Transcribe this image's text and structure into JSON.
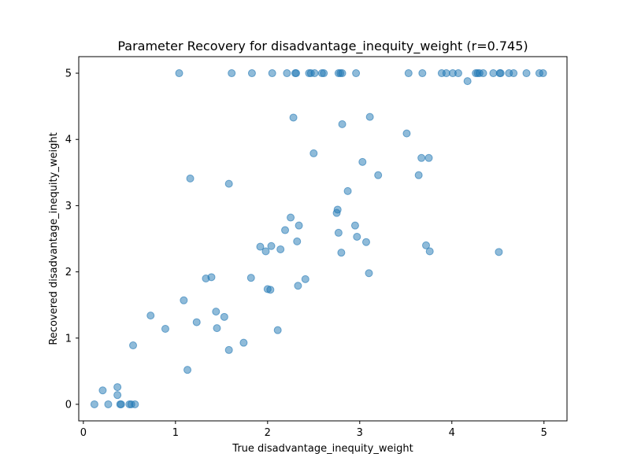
{
  "chart_data": {
    "type": "scatter",
    "title": "Parameter Recovery for disadvantage_inequity_weight (r=0.745)",
    "xlabel": "True disadvantage_inequity_weight",
    "ylabel": "Recovered disadvantage_inequity_weight",
    "xlim": [
      -0.05,
      5.25
    ],
    "ylim": [
      -0.25,
      5.25
    ],
    "xticks": [
      0,
      1,
      2,
      3,
      4,
      5
    ],
    "yticks": [
      0,
      1,
      2,
      3,
      4,
      5
    ],
    "grid": false,
    "marker_color": "#1f77b4",
    "points": [
      [
        0.12,
        0.0
      ],
      [
        0.27,
        0.0
      ],
      [
        0.4,
        0.0
      ],
      [
        0.41,
        0.0
      ],
      [
        0.5,
        0.0
      ],
      [
        0.52,
        0.0
      ],
      [
        0.56,
        0.0
      ],
      [
        0.21,
        0.21
      ],
      [
        0.37,
        0.14
      ],
      [
        0.37,
        0.26
      ],
      [
        0.54,
        0.89
      ],
      [
        0.73,
        1.34
      ],
      [
        0.89,
        1.14
      ],
      [
        1.04,
        5.0
      ],
      [
        1.09,
        1.57
      ],
      [
        1.13,
        0.52
      ],
      [
        1.16,
        3.41
      ],
      [
        1.23,
        1.24
      ],
      [
        1.33,
        1.9
      ],
      [
        1.39,
        1.92
      ],
      [
        1.44,
        1.4
      ],
      [
        1.45,
        1.15
      ],
      [
        1.53,
        1.32
      ],
      [
        1.58,
        0.82
      ],
      [
        1.58,
        3.33
      ],
      [
        1.61,
        5.0
      ],
      [
        1.74,
        0.93
      ],
      [
        1.82,
        1.91
      ],
      [
        1.83,
        5.0
      ],
      [
        1.92,
        2.38
      ],
      [
        1.98,
        2.31
      ],
      [
        2.0,
        1.74
      ],
      [
        2.03,
        1.73
      ],
      [
        2.04,
        2.39
      ],
      [
        2.05,
        5.0
      ],
      [
        2.11,
        1.12
      ],
      [
        2.14,
        2.34
      ],
      [
        2.19,
        2.63
      ],
      [
        2.21,
        5.0
      ],
      [
        2.25,
        2.82
      ],
      [
        2.28,
        4.33
      ],
      [
        2.3,
        5.0
      ],
      [
        2.31,
        5.0
      ],
      [
        2.32,
        2.46
      ],
      [
        2.33,
        1.79
      ],
      [
        2.34,
        2.7
      ],
      [
        2.41,
        1.89
      ],
      [
        2.45,
        5.0
      ],
      [
        2.47,
        5.0
      ],
      [
        2.5,
        3.79
      ],
      [
        2.51,
        5.0
      ],
      [
        2.59,
        5.0
      ],
      [
        2.61,
        5.0
      ],
      [
        2.75,
        2.89
      ],
      [
        2.76,
        2.94
      ],
      [
        2.77,
        2.59
      ],
      [
        2.77,
        5.0
      ],
      [
        2.79,
        5.0
      ],
      [
        2.8,
        2.29
      ],
      [
        2.81,
        5.0
      ],
      [
        2.81,
        4.23
      ],
      [
        2.87,
        3.22
      ],
      [
        2.95,
        2.7
      ],
      [
        2.96,
        5.0
      ],
      [
        2.97,
        2.53
      ],
      [
        3.03,
        3.66
      ],
      [
        3.07,
        2.45
      ],
      [
        3.1,
        1.98
      ],
      [
        3.11,
        4.34
      ],
      [
        3.2,
        3.46
      ],
      [
        3.51,
        4.09
      ],
      [
        3.53,
        5.0
      ],
      [
        3.64,
        3.46
      ],
      [
        3.67,
        3.72
      ],
      [
        3.68,
        5.0
      ],
      [
        3.72,
        2.4
      ],
      [
        3.75,
        3.72
      ],
      [
        3.76,
        2.31
      ],
      [
        3.89,
        5.0
      ],
      [
        3.94,
        5.0
      ],
      [
        4.01,
        5.0
      ],
      [
        4.07,
        5.0
      ],
      [
        4.17,
        4.88
      ],
      [
        4.26,
        5.0
      ],
      [
        4.28,
        5.0
      ],
      [
        4.3,
        5.0
      ],
      [
        4.34,
        5.0
      ],
      [
        4.45,
        5.0
      ],
      [
        4.51,
        2.3
      ],
      [
        4.52,
        5.0
      ],
      [
        4.53,
        5.0
      ],
      [
        4.62,
        5.0
      ],
      [
        4.67,
        5.0
      ],
      [
        4.81,
        5.0
      ],
      [
        4.95,
        5.0
      ],
      [
        4.99,
        5.0
      ]
    ]
  }
}
